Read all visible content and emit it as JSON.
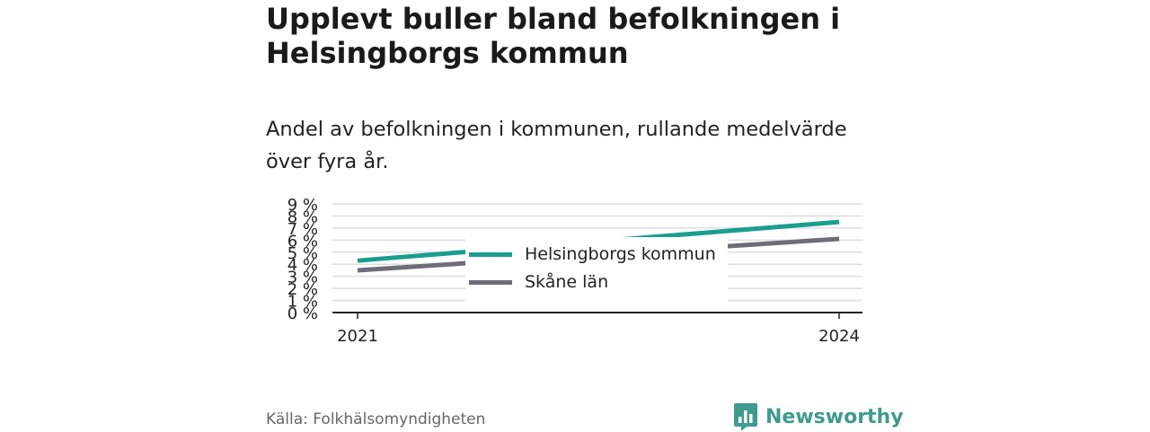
{
  "header": {
    "title": "Upplevt buller bland befolkningen i Helsingborgs kommun",
    "subtitle": "Andel av befolkningen i kommunen, rullande medelvärde över fyra år."
  },
  "footer": {
    "source": "Källa: Folkhälsomyndigheten",
    "brand": "Newsworthy"
  },
  "colors": {
    "helsingborg": "#1a9e8f",
    "skane": "#6e6e78",
    "grid": "#dedede",
    "axis": "#222222",
    "brand": "#3f9a8f"
  },
  "chart_data": {
    "type": "line",
    "title": "Upplevt buller bland befolkningen i Helsingborgs kommun",
    "subtitle": "Andel av befolkningen i kommunen, rullande medelvärde över fyra år.",
    "xlabel": "",
    "ylabel": "",
    "x": [
      2021,
      2024
    ],
    "x_tick_labels": [
      "2021",
      "2024"
    ],
    "ylim": [
      0,
      9
    ],
    "y_ticks": [
      0,
      1,
      2,
      3,
      4,
      5,
      6,
      7,
      8,
      9
    ],
    "y_tick_labels": [
      "0 %",
      "1 %",
      "2 %",
      "3 %",
      "4 %",
      "5 %",
      "6 %",
      "7 %",
      "8 %",
      "9 %"
    ],
    "grid": true,
    "legend_position": "center",
    "series": [
      {
        "name": "Helsingborgs kommun",
        "values": [
          4.3,
          7.5
        ]
      },
      {
        "name": "Skåne län",
        "values": [
          3.5,
          6.1
        ]
      }
    ]
  }
}
